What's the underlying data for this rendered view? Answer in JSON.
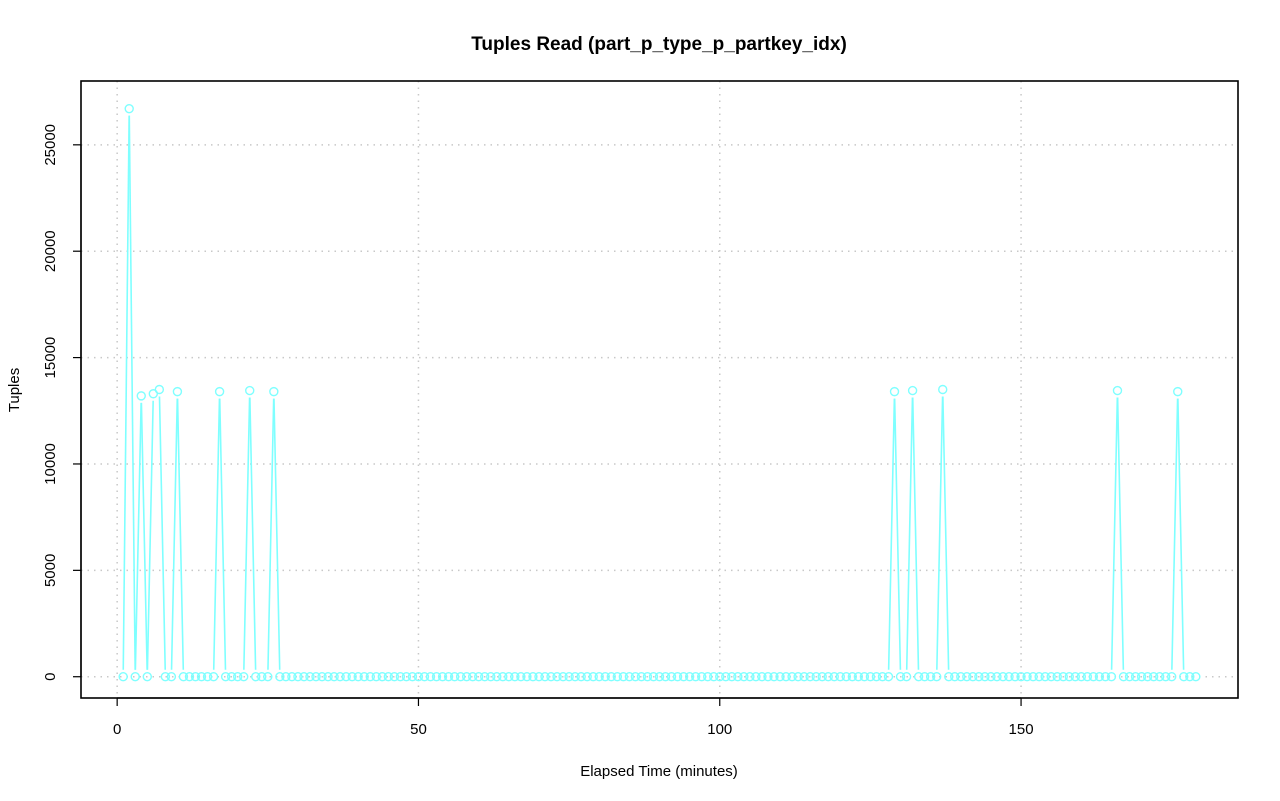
{
  "chart_data": {
    "type": "line",
    "title": "Tuples Read (part_p_type_p_partkey_idx)",
    "xlabel": "Elapsed Time (minutes)",
    "ylabel": "Tuples",
    "xlim": [
      -6,
      186
    ],
    "ylim": [
      -1000,
      28000
    ],
    "x_ticks": [
      0,
      50,
      100,
      150
    ],
    "y_ticks": [
      0,
      5000,
      10000,
      15000,
      20000,
      25000
    ],
    "x_tick_labels": [
      "0",
      "50",
      "100",
      "150"
    ],
    "y_tick_labels": [
      "0",
      "5000",
      "10000",
      "15000",
      "20000",
      "25000"
    ],
    "grid": true,
    "line_color": "#7fffff",
    "series": [
      {
        "x_start": 1,
        "x_end": 179,
        "x_step": 1,
        "default_y": 0,
        "nonzero_points": [
          {
            "x": 2,
            "y": 26700
          },
          {
            "x": 4,
            "y": 13200
          },
          {
            "x": 6,
            "y": 13300
          },
          {
            "x": 7,
            "y": 13500
          },
          {
            "x": 10,
            "y": 13400
          },
          {
            "x": 17,
            "y": 13400
          },
          {
            "x": 22,
            "y": 13450
          },
          {
            "x": 26,
            "y": 13400
          },
          {
            "x": 129,
            "y": 13400
          },
          {
            "x": 132,
            "y": 13450
          },
          {
            "x": 137,
            "y": 13500
          },
          {
            "x": 166,
            "y": 13450
          },
          {
            "x": 176,
            "y": 13400
          }
        ]
      }
    ]
  }
}
